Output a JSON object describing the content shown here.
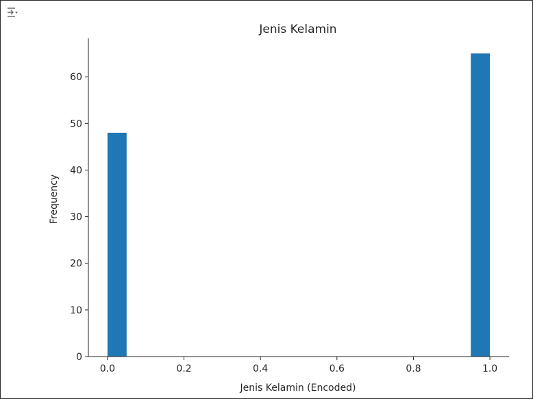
{
  "icons": {
    "output_toggle": "output-toggle-icon"
  },
  "colors": {
    "bar": "#1f77b4",
    "axis": "#262626",
    "icon": "#616161"
  },
  "chart_data": {
    "type": "bar",
    "title": "Jenis Kelamin",
    "xlabel": "Jenis Kelamin (Encoded)",
    "ylabel": "Frequency",
    "xlim": [
      -0.05,
      1.05
    ],
    "ylim": [
      0,
      68.25
    ],
    "xticks": [
      "0.0",
      "0.2",
      "0.4",
      "0.6",
      "0.8",
      "1.0"
    ],
    "yticks": [
      "0",
      "10",
      "20",
      "30",
      "40",
      "50",
      "60"
    ],
    "bins": [
      {
        "x_start": 0.0,
        "x_end": 0.05,
        "value": 48
      },
      {
        "x_start": 0.95,
        "x_end": 1.0,
        "value": 65
      }
    ],
    "grid": false,
    "legend": "none"
  }
}
